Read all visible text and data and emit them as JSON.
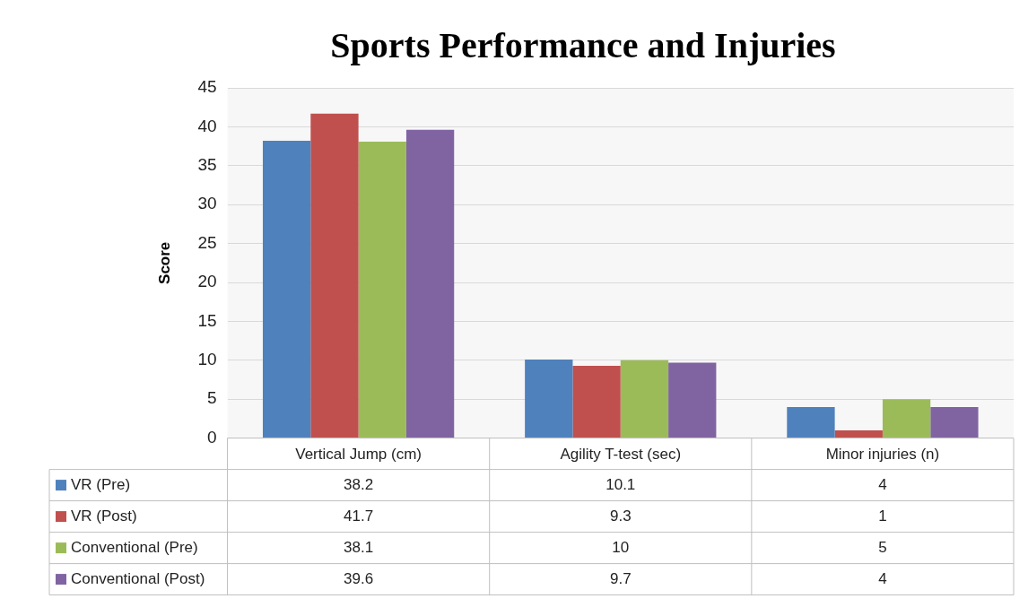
{
  "chart_data": {
    "type": "bar",
    "title": "Sports Performance and Injuries",
    "ylabel": "Score",
    "categories": [
      "Vertical Jump (cm)",
      "Agility T-test (sec)",
      "Minor injuries (n)"
    ],
    "series": [
      {
        "name": "VR (Pre)",
        "color": "#4f81bd",
        "values": [
          38.2,
          10.1,
          4
        ]
      },
      {
        "name": "VR (Post)",
        "color": "#c0504d",
        "values": [
          41.7,
          9.3,
          1
        ]
      },
      {
        "name": "Conventional (Pre)",
        "color": "#9bbb59",
        "values": [
          38.1,
          10,
          5
        ]
      },
      {
        "name": "Conventional (Post)",
        "color": "#8064a2",
        "values": [
          39.6,
          9.7,
          4
        ]
      }
    ],
    "ylim": [
      0,
      45
    ],
    "yticks": [
      0,
      5,
      10,
      15,
      20,
      25,
      30,
      35,
      40,
      45
    ],
    "grid": "y",
    "legend": "bottom",
    "data_labels": true
  }
}
